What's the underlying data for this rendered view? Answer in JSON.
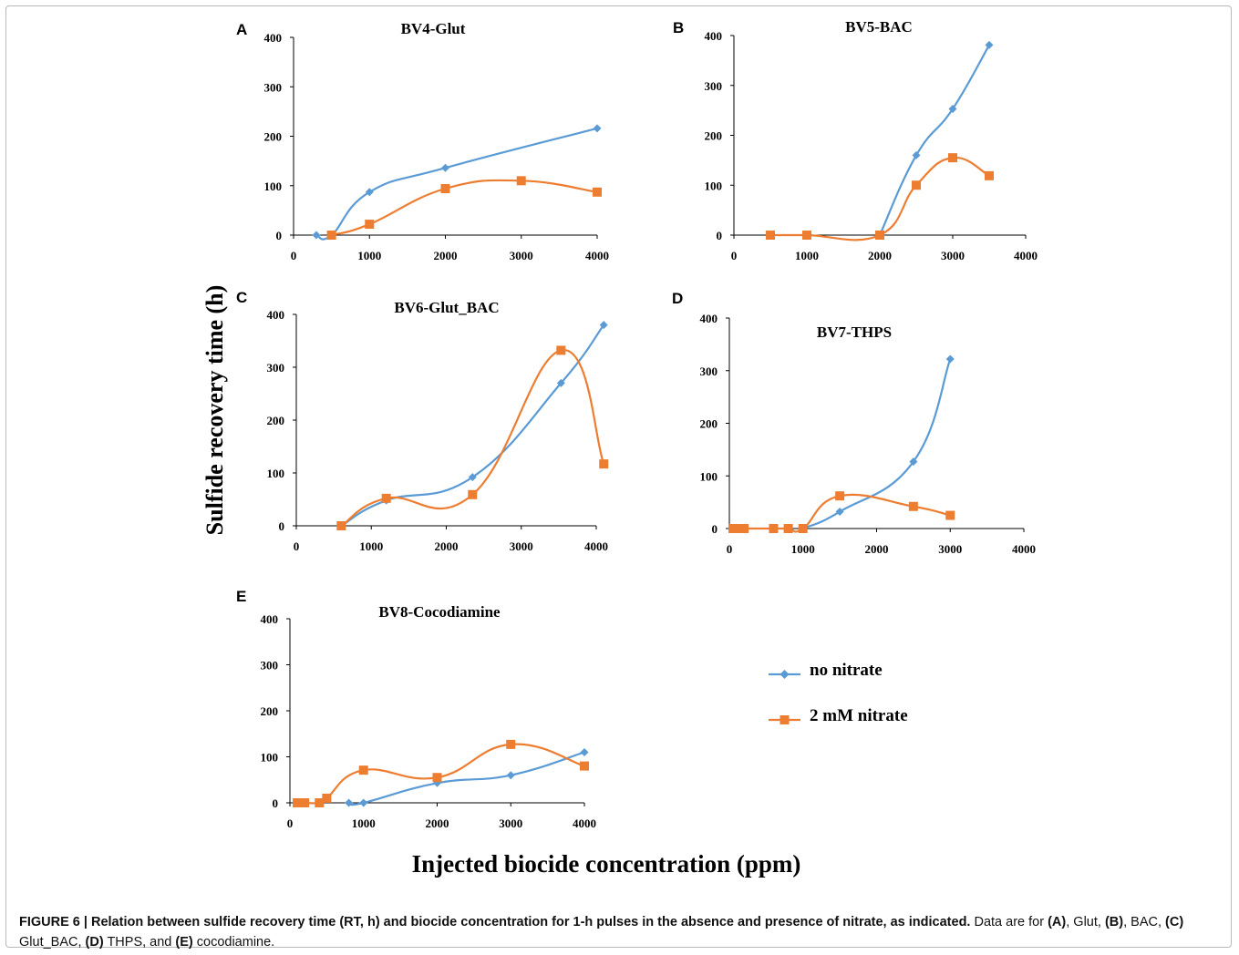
{
  "colors": {
    "no_nitrate": "#5b9bd5",
    "nitrate": "#ed7d31",
    "axis": "#000000"
  },
  "ylabel": "Sulfide recovery time (h)",
  "xlabel": "Injected biocide concentration (ppm)",
  "legend": [
    {
      "label": "no nitrate",
      "marker": "diamond",
      "color": "#5b9bd5"
    },
    {
      "label": "2 mM nitrate",
      "marker": "square",
      "color": "#ed7d31"
    }
  ],
  "caption": {
    "label": "FIGURE 6 | Relation between sulfide recovery time (RT, h) and biocide concentration for 1-h pulses in the absence and presence of nitrate, as indicated.",
    "text_parts": [
      {
        "t": " Data are for ",
        "b": false
      },
      {
        "t": "(A)",
        "b": true
      },
      {
        "t": ", Glut, ",
        "b": false
      },
      {
        "t": "(B)",
        "b": true
      },
      {
        "t": ", BAC, ",
        "b": false
      },
      {
        "t": "(C)",
        "b": true
      },
      {
        "t": " Glut_BAC, ",
        "b": false
      },
      {
        "t": "(D)",
        "b": true
      },
      {
        "t": " THPS, and ",
        "b": false
      },
      {
        "t": "(E)",
        "b": true
      },
      {
        "t": " cocodiamine.",
        "b": false
      }
    ]
  },
  "chart_data": [
    {
      "panel": "A",
      "title": "BV4-Glut",
      "type": "line",
      "xlim": [
        0,
        4000
      ],
      "ylim": [
        0,
        400
      ],
      "xticks": [
        0,
        1000,
        2000,
        3000,
        4000
      ],
      "yticks": [
        0,
        100,
        200,
        300,
        400
      ],
      "series": [
        {
          "name": "no nitrate",
          "x": [
            300,
            500,
            1000,
            2000,
            4000
          ],
          "y": [
            0,
            0,
            87,
            136,
            216
          ]
        },
        {
          "name": "2 mM nitrate",
          "x": [
            500,
            1000,
            2000,
            3000,
            4000
          ],
          "y": [
            0,
            22,
            94,
            110,
            87
          ]
        }
      ]
    },
    {
      "panel": "B",
      "title": "BV5-BAC",
      "type": "line",
      "xlim": [
        0,
        4000
      ],
      "ylim": [
        0,
        400
      ],
      "xticks": [
        0,
        1000,
        2000,
        3000,
        4000
      ],
      "yticks": [
        0,
        100,
        200,
        300,
        400
      ],
      "series": [
        {
          "name": "no nitrate",
          "x": [
            2000,
            2500,
            3000,
            3500
          ],
          "y": [
            0,
            160,
            253,
            381
          ]
        },
        {
          "name": "2 mM nitrate",
          "x": [
            500,
            1000,
            2000,
            2500,
            3000,
            3500
          ],
          "y": [
            0,
            0,
            0,
            100,
            155,
            119
          ]
        }
      ]
    },
    {
      "panel": "C",
      "title": "BV6-Glut_BAC",
      "type": "line",
      "xlim": [
        0,
        4000
      ],
      "ylim": [
        0,
        400
      ],
      "xticks": [
        0,
        1000,
        2000,
        3000,
        4000
      ],
      "yticks": [
        0,
        100,
        200,
        300,
        400
      ],
      "series": [
        {
          "name": "no nitrate",
          "x": [
            600,
            1200,
            2350,
            3530,
            4100
          ],
          "y": [
            0,
            48,
            92,
            270,
            380
          ]
        },
        {
          "name": "2 mM nitrate",
          "x": [
            600,
            1200,
            2350,
            3530,
            4100
          ],
          "y": [
            0,
            52,
            59,
            332,
            117
          ]
        }
      ]
    },
    {
      "panel": "D",
      "title": "BV7-THPS",
      "type": "line",
      "xlim": [
        0,
        4000
      ],
      "ylim": [
        0,
        400
      ],
      "xticks": [
        0,
        1000,
        2000,
        3000,
        4000
      ],
      "yticks": [
        0,
        100,
        200,
        300,
        400
      ],
      "series": [
        {
          "name": "no nitrate",
          "x": [
            1000,
            1500,
            2500,
            3000
          ],
          "y": [
            0,
            32,
            127,
            322
          ]
        },
        {
          "name": "2 mM nitrate",
          "x": [
            50,
            100,
            200,
            600,
            800,
            1000,
            1500,
            2500,
            3000
          ],
          "y": [
            0,
            0,
            0,
            0,
            0,
            0,
            62,
            42,
            25
          ]
        }
      ]
    },
    {
      "panel": "E",
      "title": "BV8-Cocodiamine",
      "type": "line",
      "xlim": [
        0,
        4000
      ],
      "ylim": [
        0,
        400
      ],
      "xticks": [
        0,
        1000,
        2000,
        3000,
        4000
      ],
      "yticks": [
        0,
        100,
        200,
        300,
        400
      ],
      "series": [
        {
          "name": "no nitrate",
          "x": [
            800,
            1000,
            2000,
            3000,
            4000
          ],
          "y": [
            0,
            0,
            43,
            60,
            110
          ]
        },
        {
          "name": "2 mM nitrate",
          "x": [
            100,
            150,
            200,
            400,
            500,
            1000,
            2000,
            3000,
            4000
          ],
          "y": [
            0,
            0,
            0,
            0,
            10,
            71,
            55,
            127,
            80
          ]
        }
      ]
    }
  ]
}
